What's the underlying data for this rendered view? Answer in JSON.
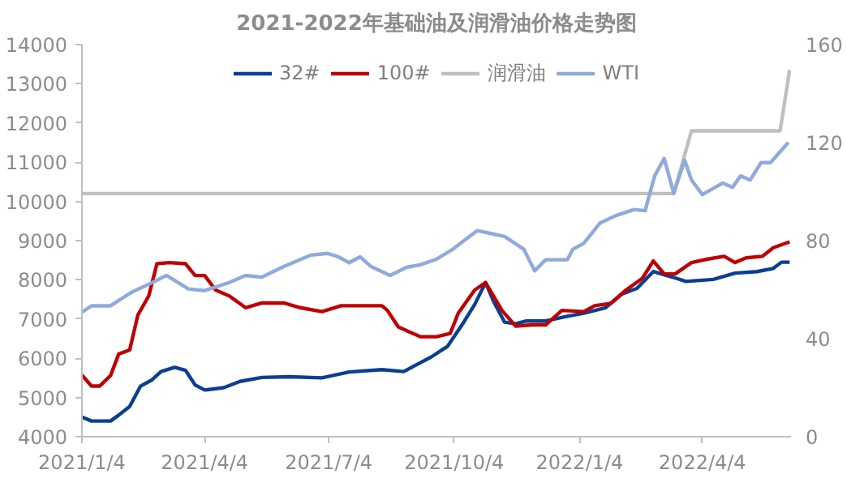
{
  "chart_data": {
    "type": "line",
    "title": "2021-2022年基础油及润滑油价格走势图",
    "legend": "top",
    "grid": false,
    "marker": "none",
    "line_style": "solid",
    "xlim": [
      "2021-01-04",
      "2022-06-08"
    ],
    "xticks": [
      {
        "value": "2021-01-04",
        "label": "2021/1/4"
      },
      {
        "value": "2021-04-04",
        "label": "2021/4/4"
      },
      {
        "value": "2021-07-04",
        "label": "2021/7/4"
      },
      {
        "value": "2021-10-04",
        "label": "2021/10/4"
      },
      {
        "value": "2022-01-04",
        "label": "2022/1/4"
      },
      {
        "value": "2022-04-04",
        "label": "2022/4/4"
      }
    ],
    "ylim": [
      4000,
      14000
    ],
    "yticks": [
      4000,
      5000,
      6000,
      7000,
      8000,
      9000,
      10000,
      11000,
      12000,
      13000,
      14000
    ],
    "y2lim": [
      0,
      160
    ],
    "y2ticks": [
      0,
      40,
      80,
      120,
      160
    ],
    "series": [
      {
        "name": "32#",
        "color": "#0b3f92",
        "x": [
          "2021-01-04",
          "2021-01-11",
          "2021-01-25",
          "2021-01-31",
          "2021-02-08",
          "2021-02-16",
          "2021-02-24",
          "2021-03-03",
          "2021-03-13",
          "2021-03-21",
          "2021-03-28",
          "2021-04-04",
          "2021-04-18",
          "2021-04-30",
          "2021-05-16",
          "2021-06-05",
          "2021-06-29",
          "2021-07-19",
          "2021-08-12",
          "2021-08-28",
          "2021-09-05",
          "2021-09-17",
          "2021-09-29",
          "2021-10-11",
          "2021-10-19",
          "2021-10-27",
          "2021-11-02",
          "2021-11-10",
          "2021-11-18",
          "2021-11-26",
          "2021-12-10",
          "2021-12-26",
          "2022-01-07",
          "2022-01-23",
          "2022-02-04",
          "2022-02-15",
          "2022-02-27",
          "2022-03-13",
          "2022-03-23",
          "2022-04-12",
          "2022-04-28",
          "2022-05-14",
          "2022-05-26",
          "2022-06-01",
          "2022-06-07"
        ],
        "values": [
          4500,
          4400,
          4400,
          4550,
          4770,
          5290,
          5440,
          5660,
          5770,
          5690,
          5320,
          5190,
          5250,
          5410,
          5510,
          5530,
          5500,
          5650,
          5710,
          5660,
          5810,
          6030,
          6300,
          6920,
          7370,
          7930,
          7440,
          6920,
          6880,
          6950,
          6950,
          7070,
          7150,
          7290,
          7640,
          7780,
          8210,
          8070,
          7960,
          8010,
          8170,
          8210,
          8290,
          8450,
          8450
        ]
      },
      {
        "name": "100#",
        "color": "#c00000",
        "x": [
          "2021-01-04",
          "2021-01-11",
          "2021-01-17",
          "2021-01-25",
          "2021-01-31",
          "2021-02-08",
          "2021-02-14",
          "2021-02-22",
          "2021-02-28",
          "2021-03-09",
          "2021-03-21",
          "2021-03-28",
          "2021-04-04",
          "2021-04-12",
          "2021-04-22",
          "2021-05-04",
          "2021-05-16",
          "2021-06-01",
          "2021-06-13",
          "2021-06-29",
          "2021-07-13",
          "2021-08-12",
          "2021-08-16",
          "2021-08-24",
          "2021-09-09",
          "2021-09-21",
          "2021-10-01",
          "2021-10-07",
          "2021-10-19",
          "2021-10-27",
          "2021-11-08",
          "2021-11-18",
          "2021-11-30",
          "2021-12-10",
          "2021-12-22",
          "2022-01-07",
          "2022-01-15",
          "2022-01-27",
          "2022-02-07",
          "2022-02-19",
          "2022-02-27",
          "2022-03-07",
          "2022-03-15",
          "2022-03-27",
          "2022-04-08",
          "2022-04-20",
          "2022-04-28",
          "2022-05-06",
          "2022-05-18",
          "2022-05-26",
          "2022-06-07"
        ],
        "values": [
          5570,
          5290,
          5290,
          5560,
          6110,
          6210,
          7100,
          7590,
          8410,
          8440,
          8410,
          8110,
          8110,
          7740,
          7590,
          7290,
          7410,
          7410,
          7290,
          7190,
          7340,
          7340,
          7220,
          6800,
          6550,
          6550,
          6630,
          7150,
          7740,
          7930,
          7220,
          6820,
          6850,
          6850,
          7220,
          7190,
          7340,
          7400,
          7740,
          8040,
          8480,
          8150,
          8150,
          8440,
          8530,
          8600,
          8440,
          8560,
          8600,
          8820,
          8970
        ]
      },
      {
        "name": "润滑油",
        "color": "#bfbfbf",
        "x": [
          "2021-01-04",
          "2022-03-14",
          "2022-03-27",
          "2022-05-31",
          "2022-06-07"
        ],
        "values": [
          10200,
          10200,
          11800,
          11800,
          13350
        ]
      },
      {
        "name": "WTI",
        "color": "#8faadc",
        "axis": "y2",
        "x": [
          "2021-01-04",
          "2021-01-11",
          "2021-01-25",
          "2021-02-10",
          "2021-02-22",
          "2021-03-07",
          "2021-03-23",
          "2021-04-04",
          "2021-04-22",
          "2021-05-04",
          "2021-05-16",
          "2021-06-01",
          "2021-06-21",
          "2021-07-03",
          "2021-07-11",
          "2021-07-19",
          "2021-07-27",
          "2021-08-04",
          "2021-08-18",
          "2021-08-30",
          "2021-09-09",
          "2021-09-21",
          "2021-10-03",
          "2021-10-21",
          "2021-10-31",
          "2021-11-10",
          "2021-11-24",
          "2021-12-02",
          "2021-12-10",
          "2021-12-26",
          "2021-12-30",
          "2022-01-07",
          "2022-01-19",
          "2022-01-31",
          "2022-02-13",
          "2022-02-21",
          "2022-02-28",
          "2022-03-07",
          "2022-03-14",
          "2022-03-22",
          "2022-03-27",
          "2022-04-04",
          "2022-04-19",
          "2022-04-26",
          "2022-05-02",
          "2022-05-09",
          "2022-05-17",
          "2022-05-24",
          "2022-06-06"
        ],
        "values": [
          50.8,
          53.4,
          53.4,
          59.1,
          62.2,
          65.8,
          60.3,
          59.6,
          62.9,
          65.8,
          65.1,
          69.4,
          74.1,
          74.8,
          73.4,
          71.0,
          73.4,
          69.4,
          65.8,
          69.1,
          70.1,
          72.4,
          76.5,
          84.1,
          82.9,
          81.7,
          76.5,
          67.7,
          72.2,
          72.2,
          76.5,
          78.9,
          87.2,
          90.3,
          92.7,
          92.2,
          106.4,
          113.5,
          99.3,
          112.8,
          104.7,
          98.8,
          103.5,
          101.7,
          106.4,
          104.7,
          111.8,
          111.8,
          120.1
        ]
      }
    ]
  }
}
